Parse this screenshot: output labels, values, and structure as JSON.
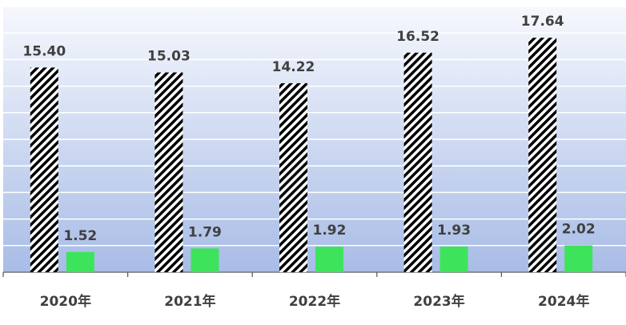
{
  "chart_data": {
    "type": "bar",
    "categories": [
      "2020年",
      "2021年",
      "2022年",
      "2023年",
      "2024年"
    ],
    "series": [
      {
        "color": "#000000",
        "hatch": true,
        "values": [
          15.4,
          15.03,
          14.22,
          16.52,
          17.64
        ],
        "value_labels": [
          "15.40",
          "15.03",
          "14.22",
          "16.52",
          "17.64"
        ]
      },
      {
        "color": "#3ee35c",
        "values": [
          1.52,
          1.79,
          1.92,
          1.93,
          2.02
        ],
        "value_labels": [
          "1.52",
          "1.79",
          "1.92",
          "1.93",
          "2.02"
        ]
      }
    ],
    "ylim": [
      0,
      20
    ],
    "yticks": [
      0,
      2,
      4,
      6,
      8,
      10,
      12,
      14,
      16,
      18,
      20
    ],
    "grid": true
  }
}
